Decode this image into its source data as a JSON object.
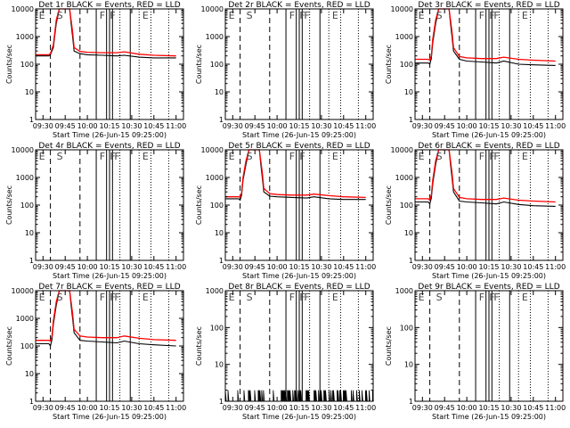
{
  "figure": {
    "title_template": "Det {n}r  BLACK = Events, RED = LLD",
    "xlabel": "Start Time (26-Jun-15 09:25:00)",
    "ylabel": "Counts/sec"
  },
  "chart_data": {
    "type": "line",
    "x_ticks": [
      "09:30",
      "09:45",
      "10:00",
      "10:15",
      "10:30",
      "10:45",
      "11:00"
    ],
    "x_tick_minutes": [
      5,
      20,
      35,
      50,
      65,
      80,
      95
    ],
    "x_range_minutes": [
      0,
      100
    ],
    "dashed_markers_minutes": [
      10,
      30
    ],
    "solid_markers_minutes": [
      41,
      48,
      50,
      52,
      64
    ],
    "dotted_markers_minutes": [
      57,
      70,
      78,
      90
    ],
    "y_scale": "log",
    "colors": {
      "events": "#000000",
      "lld": "#ff0000",
      "axes": "#000000"
    },
    "panels": [
      {
        "det": "1",
        "title": "Det 1r  BLACK = Events, RED = LLD",
        "y_ticks": [
          "1",
          "10",
          "100",
          "1000",
          "10000"
        ],
        "ylim": [
          1,
          10000
        ],
        "flags": [
          {
            "label": "E",
            "t": 1
          },
          {
            "label": "S",
            "t": 13
          },
          {
            "label": "F",
            "t": 42
          },
          {
            "label": "F",
            "t": 49
          },
          {
            "label": "E",
            "t": 71
          }
        ],
        "series": [
          {
            "name": "BLACK = Events",
            "x": [
              0,
              9,
              10,
              12,
              14,
              16,
              23,
              24,
              25,
              26,
              30,
              35,
              45,
              55,
              60,
              70,
              80,
              95
            ],
            "values": [
              200,
              200,
              220,
              400,
              3000,
              10000,
              10000,
              3000,
              1000,
              300,
              240,
              220,
              210,
              200,
              210,
              180,
              170,
              170
            ]
          },
          {
            "name": "RED = LLD",
            "x": [
              0,
              9,
              10,
              12,
              14,
              16,
              23,
              24,
              25,
              26,
              30,
              35,
              45,
              55,
              60,
              70,
              80,
              95
            ],
            "values": [
              220,
              220,
              240,
              500,
              4000,
              10000,
              10000,
              4000,
              1500,
              400,
              290,
              270,
              260,
              260,
              280,
              230,
              210,
              200
            ]
          }
        ]
      },
      {
        "det": "2",
        "title": "Det 2r  BLACK = Events, RED = LLD",
        "y_ticks": [
          "1",
          "10",
          "100",
          "1000",
          "10000"
        ],
        "ylim": [
          1,
          10000
        ],
        "flags": [
          {
            "label": "E",
            "t": 1
          },
          {
            "label": "S",
            "t": 13
          },
          {
            "label": "F",
            "t": 42
          },
          {
            "label": "F",
            "t": 49
          },
          {
            "label": "F",
            "t": 52
          },
          {
            "label": "E",
            "t": 71
          }
        ],
        "series": []
      },
      {
        "det": "3",
        "title": "Det 3r  BLACK = Events, RED = LLD",
        "y_ticks": [
          "1",
          "10",
          "100",
          "1000",
          "10000"
        ],
        "ylim": [
          1,
          10000
        ],
        "flags": [
          {
            "label": "E",
            "t": 1
          },
          {
            "label": "S",
            "t": 13
          },
          {
            "label": "F",
            "t": 42
          },
          {
            "label": "F",
            "t": 49
          },
          {
            "label": "F",
            "t": 52
          },
          {
            "label": "E",
            "t": 71
          }
        ],
        "series": [
          {
            "name": "BLACK = Events",
            "x": [
              0,
              9,
              10,
              11,
              12,
              14,
              16,
              23,
              24,
              25,
              26,
              30,
              35,
              45,
              55,
              60,
              70,
              80,
              95
            ],
            "values": [
              110,
              110,
              100,
              160,
              600,
              3000,
              10000,
              10000,
              3000,
              1000,
              300,
              150,
              130,
              120,
              110,
              130,
              100,
              95,
              90
            ]
          },
          {
            "name": "RED = LLD",
            "x": [
              0,
              9,
              10,
              11,
              12,
              14,
              16,
              23,
              24,
              25,
              26,
              30,
              35,
              45,
              55,
              60,
              70,
              80,
              95
            ],
            "values": [
              150,
              150,
              140,
              200,
              800,
              4000,
              10000,
              10000,
              4000,
              1500,
              400,
              190,
              170,
              160,
              160,
              180,
              150,
              140,
              130
            ]
          }
        ]
      },
      {
        "det": "4",
        "title": "Det 4r  BLACK = Events, RED = LLD",
        "y_ticks": [
          "1",
          "10",
          "100",
          "1000",
          "10000"
        ],
        "ylim": [
          1,
          10000
        ],
        "flags": [
          {
            "label": "E",
            "t": 1
          },
          {
            "label": "S",
            "t": 13
          },
          {
            "label": "F",
            "t": 42
          },
          {
            "label": "F",
            "t": 49
          },
          {
            "label": "F",
            "t": 52
          },
          {
            "label": "E",
            "t": 71
          }
        ],
        "series": []
      },
      {
        "det": "5",
        "title": "Det 5r  BLACK = Events, RED = LLD",
        "y_ticks": [
          "1",
          "10",
          "100",
          "1000",
          "10000"
        ],
        "ylim": [
          1,
          10000
        ],
        "flags": [
          {
            "label": "E",
            "t": 1
          },
          {
            "label": "S",
            "t": 13
          },
          {
            "label": "F",
            "t": 42
          },
          {
            "label": "F",
            "t": 49
          },
          {
            "label": "E",
            "t": 71
          }
        ],
        "series": [
          {
            "name": "BLACK = Events",
            "x": [
              0,
              9,
              10,
              11,
              12,
              14,
              16,
              23,
              24,
              25,
              26,
              30,
              35,
              45,
              55,
              60,
              70,
              80,
              95
            ],
            "values": [
              170,
              170,
              150,
              230,
              800,
              3000,
              10000,
              10000,
              3000,
              1000,
              300,
              210,
              200,
              190,
              180,
              200,
              170,
              160,
              160
            ]
          },
          {
            "name": "RED = LLD",
            "x": [
              0,
              9,
              10,
              11,
              12,
              14,
              16,
              23,
              24,
              25,
              26,
              30,
              35,
              45,
              55,
              60,
              70,
              80,
              95
            ],
            "values": [
              200,
              200,
              190,
              280,
              1000,
              4000,
              10000,
              10000,
              4000,
              1500,
              400,
              260,
              240,
              230,
              230,
              250,
              220,
              200,
              190
            ]
          }
        ]
      },
      {
        "det": "6",
        "title": "Det 6r  BLACK = Events, RED = LLD",
        "y_ticks": [
          "1",
          "10",
          "100",
          "1000",
          "10000"
        ],
        "ylim": [
          1,
          10000
        ],
        "flags": [
          {
            "label": "E",
            "t": 1
          },
          {
            "label": "S",
            "t": 13
          },
          {
            "label": "F",
            "t": 42
          },
          {
            "label": "F",
            "t": 49
          },
          {
            "label": "F",
            "t": 52
          },
          {
            "label": "E",
            "t": 71
          }
        ],
        "series": [
          {
            "name": "BLACK = Events",
            "x": [
              0,
              9,
              10,
              11,
              12,
              14,
              16,
              23,
              24,
              25,
              26,
              30,
              35,
              45,
              55,
              60,
              70,
              80,
              95
            ],
            "values": [
              130,
              130,
              110,
              180,
              600,
              3000,
              10000,
              10000,
              3000,
              1000,
              300,
              140,
              130,
              120,
              110,
              130,
              105,
              95,
              90
            ]
          },
          {
            "name": "RED = LLD",
            "x": [
              0,
              9,
              10,
              11,
              12,
              14,
              16,
              23,
              24,
              25,
              26,
              30,
              35,
              45,
              55,
              60,
              70,
              80,
              95
            ],
            "values": [
              170,
              170,
              150,
              230,
              800,
              4000,
              10000,
              10000,
              4000,
              1500,
              400,
              190,
              170,
              160,
              160,
              180,
              150,
              140,
              130
            ]
          }
        ]
      },
      {
        "det": "7",
        "title": "Det 7r  BLACK = Events, RED = LLD",
        "y_ticks": [
          "1",
          "10",
          "100",
          "1000",
          "10000"
        ],
        "ylim": [
          1,
          10000
        ],
        "flags": [
          {
            "label": "E",
            "t": 1
          },
          {
            "label": "S",
            "t": 13
          },
          {
            "label": "F",
            "t": 42
          },
          {
            "label": "F",
            "t": 49
          },
          {
            "label": "F",
            "t": 52
          },
          {
            "label": "E",
            "t": 71
          }
        ],
        "series": [
          {
            "name": "BLACK = Events",
            "x": [
              0,
              9,
              10,
              11,
              12,
              14,
              16,
              23,
              24,
              25,
              26,
              30,
              35,
              45,
              55,
              60,
              70,
              80,
              95
            ],
            "values": [
              120,
              120,
              100,
              170,
              600,
              3000,
              10000,
              10000,
              3000,
              1000,
              300,
              160,
              150,
              140,
              130,
              150,
              120,
              110,
              100
            ]
          },
          {
            "name": "RED = LLD",
            "x": [
              0,
              9,
              10,
              11,
              12,
              14,
              16,
              23,
              24,
              25,
              26,
              30,
              35,
              45,
              55,
              60,
              70,
              80,
              95
            ],
            "values": [
              160,
              160,
              150,
              220,
              800,
              4000,
              10000,
              10000,
              4000,
              1500,
              400,
              230,
              210,
              200,
              200,
              230,
              190,
              170,
              160
            ]
          }
        ]
      },
      {
        "det": "8",
        "title": "Det 8r  BLACK = Events, RED = LLD",
        "y_ticks": [
          "1",
          "10",
          "100",
          "1000"
        ],
        "ylim": [
          1,
          1000
        ],
        "flags": [
          {
            "label": "E",
            "t": 1
          },
          {
            "label": "S",
            "t": 13
          },
          {
            "label": "F",
            "t": 42
          },
          {
            "label": "F",
            "t": 49
          },
          {
            "label": "F",
            "t": 52
          },
          {
            "label": "E",
            "t": 71
          }
        ],
        "series": [
          {
            "name": "BLACK = Events",
            "style": "noise",
            "x": [
              0,
              100
            ],
            "values": [
              1,
              2
            ]
          }
        ]
      },
      {
        "det": "9",
        "title": "Det 9r  BLACK = Events, RED = LLD",
        "y_ticks": [
          "1",
          "10",
          "100",
          "1000"
        ],
        "ylim": [
          1,
          1000
        ],
        "flags": [
          {
            "label": "E",
            "t": 1
          },
          {
            "label": "S",
            "t": 13
          },
          {
            "label": "F",
            "t": 42
          },
          {
            "label": "F",
            "t": 49
          },
          {
            "label": "F",
            "t": 52
          },
          {
            "label": "E",
            "t": 71
          }
        ],
        "series": []
      }
    ]
  }
}
